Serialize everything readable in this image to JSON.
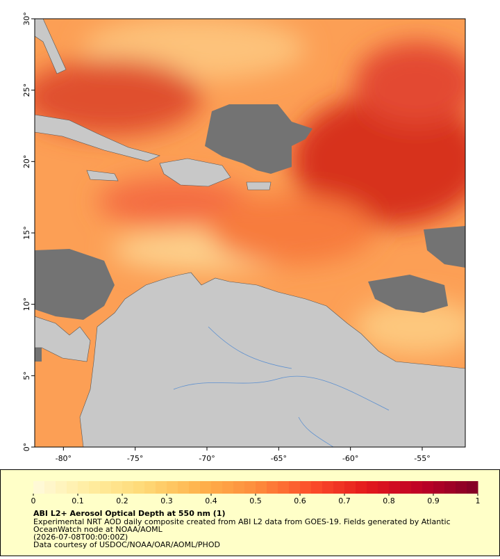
{
  "chart_data": {
    "type": "map",
    "xlim": [
      -82,
      -52
    ],
    "ylim": [
      0,
      30
    ],
    "xticks": [
      {
        "value": -80,
        "label": "-80°"
      },
      {
        "value": -75,
        "label": "-75°"
      },
      {
        "value": -70,
        "label": "-70°"
      },
      {
        "value": -65,
        "label": "-65°"
      },
      {
        "value": -60,
        "label": "-60°"
      },
      {
        "value": -55,
        "label": "-55°"
      }
    ],
    "yticks": [
      {
        "value": 0,
        "label": "0°"
      },
      {
        "value": 5,
        "label": "5°"
      },
      {
        "value": 10,
        "label": "10°"
      },
      {
        "value": 15,
        "label": "15°"
      },
      {
        "value": 20,
        "label": "20°"
      },
      {
        "value": 25,
        "label": "25°"
      },
      {
        "value": 30,
        "label": "30°"
      }
    ]
  },
  "colorbar": {
    "lim": [
      0,
      1
    ],
    "ticks": [
      0,
      0.1,
      0.2,
      0.3,
      0.4,
      0.5,
      0.6,
      0.7,
      0.8,
      0.9,
      1
    ],
    "colors": [
      "#fffadc",
      "#ffeda0",
      "#fed976",
      "#feb24c",
      "#fd8d3c",
      "#fc4e2a",
      "#e31a1c",
      "#bd0026",
      "#800026"
    ]
  },
  "caption": {
    "title": "ABI L2+ Aerosol Optical Depth at 550 nm (1)",
    "lines": [
      "Experimental NRT AOD daily composite created from ABI L2 data from GOES-19. Fields generated by Atlantic",
      "OceanWatch node at NOAA/AOML",
      "(2026-07-08T00:00:00Z)",
      "Data courtesy of USDOC/NOAA/OAR/AOML/PHOD"
    ]
  }
}
